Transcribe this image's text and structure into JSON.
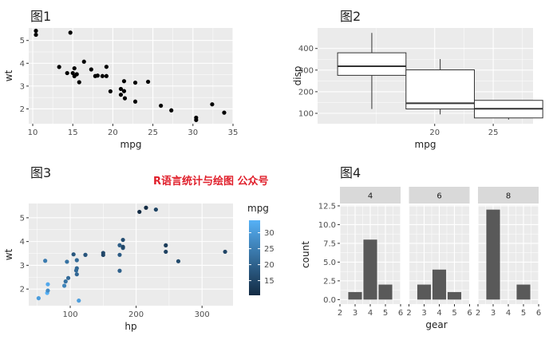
{
  "watermark": "R语言统计与绘图 公众号",
  "colors": {
    "panel": "#EBEBEB",
    "grid": "#FFFFFF",
    "point": "#000000",
    "bar": "#595959",
    "strip": "#D9D9D9",
    "low": "#132B43",
    "high": "#56B1F7"
  },
  "chart_data": [
    {
      "id": "p1",
      "type": "scatter",
      "title": "图1",
      "xlabel": "mpg",
      "ylabel": "wt",
      "xticks": [
        10,
        15,
        20,
        25,
        30,
        35
      ],
      "yticks": [
        2,
        3,
        4,
        5
      ],
      "xlim": [
        9.5,
        35
      ],
      "ylim": [
        1.35,
        5.55
      ],
      "grid": true,
      "x": [
        21.0,
        21.0,
        22.8,
        21.4,
        18.7,
        18.1,
        14.3,
        24.4,
        22.8,
        19.2,
        17.8,
        16.4,
        17.3,
        15.2,
        10.4,
        10.4,
        14.7,
        32.4,
        30.4,
        33.9,
        21.5,
        15.5,
        15.2,
        13.3,
        19.2,
        27.3,
        26.0,
        30.4,
        15.8,
        19.7,
        15.0,
        21.4
      ],
      "y": [
        2.62,
        2.875,
        2.32,
        3.215,
        3.44,
        3.46,
        3.57,
        3.19,
        3.15,
        3.44,
        3.44,
        4.07,
        3.73,
        3.78,
        5.25,
        5.424,
        5.345,
        2.2,
        1.615,
        1.835,
        2.465,
        3.52,
        3.435,
        3.84,
        3.845,
        1.935,
        2.14,
        1.513,
        3.17,
        2.77,
        3.57,
        2.78
      ]
    },
    {
      "id": "p2",
      "type": "box",
      "title": "图2",
      "xlabel": "mpg",
      "ylabel": "disp",
      "xticks": [
        20,
        25
      ],
      "yticks": [
        100,
        200,
        300,
        400
      ],
      "xlim": [
        10.0,
        28.4
      ],
      "ylim": [
        52,
        495
      ],
      "grid": true,
      "boxes": [
        {
          "x": 14.63,
          "width": 5.84,
          "min": 120.1,
          "q1": 275.8,
          "median": 318.0,
          "q3": 380.0,
          "max": 472.0
        },
        {
          "x": 20.47,
          "width": 5.84,
          "min": 95.1,
          "q1": 120.3,
          "median": 146.7,
          "q3": 301.0,
          "max": 351.0
        },
        {
          "x": 26.31,
          "width": 5.84,
          "min": 71.1,
          "q1": 78.7,
          "median": 121.0,
          "q3": 160.0,
          "max": 160.0
        }
      ]
    },
    {
      "id": "p3",
      "type": "scatter",
      "title": "图3",
      "xlabel": "hp",
      "ylabel": "wt",
      "xticks": [
        100,
        200,
        300
      ],
      "yticks": [
        2,
        3,
        4,
        5
      ],
      "xlim": [
        37,
        347
      ],
      "ylim": [
        1.3,
        5.6
      ],
      "grid": true,
      "x": [
        110,
        110,
        93,
        110,
        175,
        105,
        245,
        62,
        95,
        123,
        123,
        180,
        180,
        180,
        205,
        215,
        230,
        66,
        52,
        65,
        97,
        150,
        150,
        245,
        175,
        66,
        91,
        113,
        264,
        175,
        335,
        109
      ],
      "y": [
        2.62,
        2.875,
        2.32,
        3.215,
        3.44,
        3.46,
        3.57,
        3.19,
        3.15,
        3.44,
        3.44,
        4.07,
        3.73,
        3.78,
        5.25,
        5.424,
        5.345,
        2.2,
        1.615,
        1.835,
        2.465,
        3.52,
        3.435,
        3.84,
        3.845,
        1.935,
        2.14,
        1.513,
        3.17,
        2.77,
        3.57,
        2.78
      ],
      "color": [
        21.0,
        21.0,
        22.8,
        21.4,
        18.7,
        18.1,
        14.3,
        24.4,
        22.8,
        19.2,
        17.8,
        16.4,
        17.3,
        15.2,
        10.4,
        10.4,
        14.7,
        32.4,
        30.4,
        33.9,
        21.5,
        15.5,
        15.2,
        13.3,
        19.2,
        27.3,
        26.0,
        30.4,
        15.8,
        19.7,
        15.0,
        21.4
      ],
      "legend": {
        "title": "mpg",
        "ticks": [
          15,
          20,
          25,
          30
        ],
        "range": [
          10.4,
          33.9
        ]
      }
    },
    {
      "id": "p4",
      "type": "bar",
      "title": "图4",
      "xlabel": "gear",
      "ylabel": "count",
      "xticks": [
        2,
        3,
        4,
        5,
        6
      ],
      "yticks": [
        0.0,
        2.5,
        5.0,
        7.5,
        10.0,
        12.5
      ],
      "yticklabels": [
        "0.0",
        "2.5",
        "5.0",
        "7.5",
        "10.0",
        "12.5"
      ],
      "xlim": [
        2,
        6
      ],
      "ylim": [
        -0.6,
        12.6
      ],
      "grid": true,
      "facets": [
        {
          "label": "4",
          "categories": [
            3,
            4,
            5
          ],
          "values": [
            1,
            8,
            2
          ]
        },
        {
          "label": "6",
          "categories": [
            3,
            4,
            5
          ],
          "values": [
            2,
            4,
            1
          ]
        },
        {
          "label": "8",
          "categories": [
            3,
            4,
            5
          ],
          "values": [
            12,
            0,
            2
          ]
        }
      ]
    }
  ]
}
